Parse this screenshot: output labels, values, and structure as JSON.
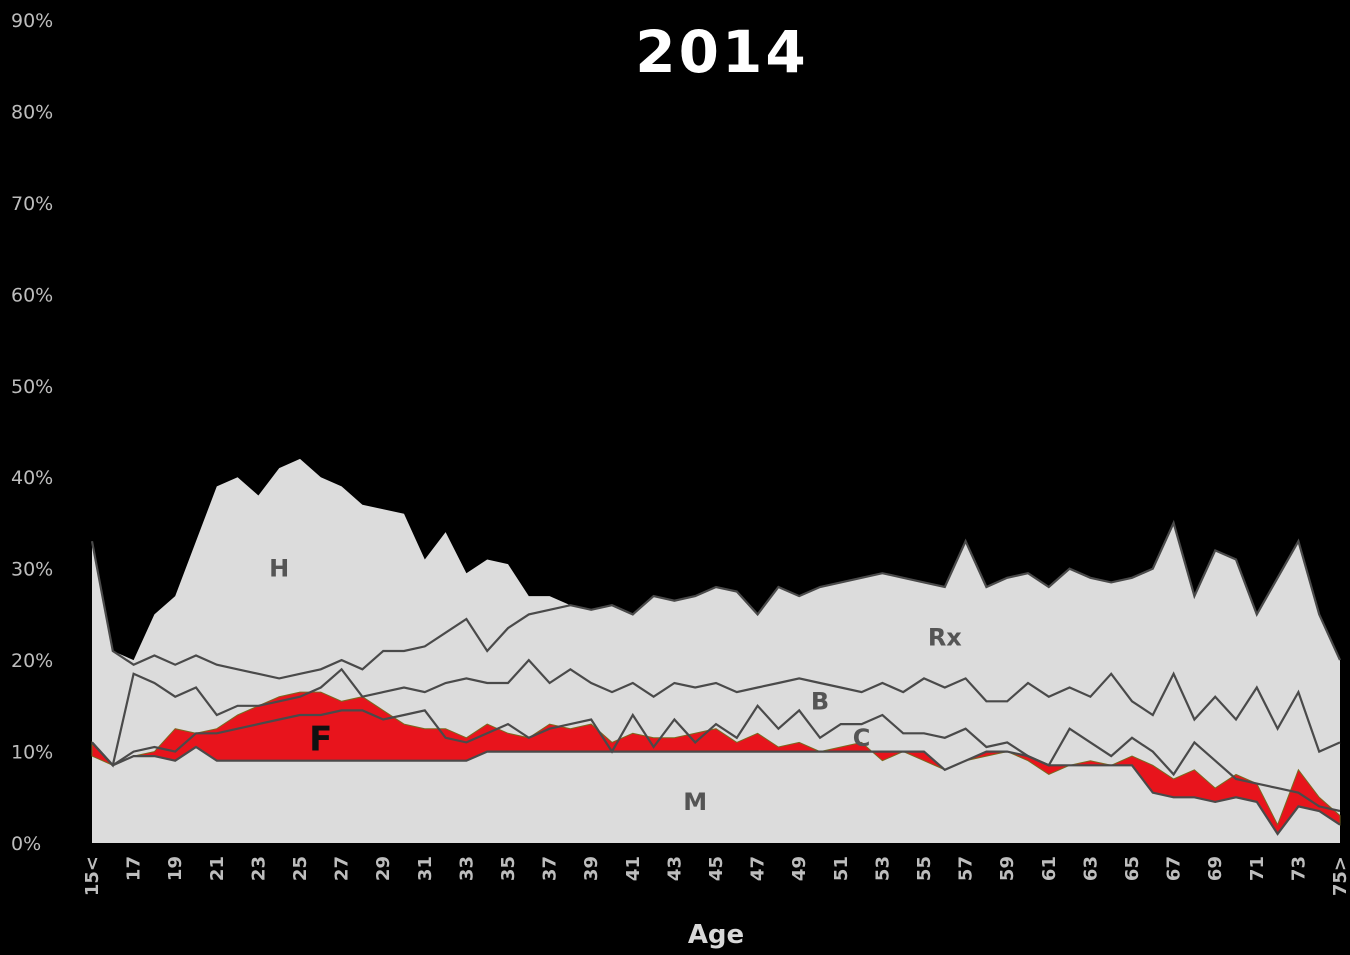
{
  "chart_data": {
    "type": "area",
    "title": "2014",
    "xlabel": "Age",
    "ylabel": "",
    "ylim": [
      0,
      90
    ],
    "yticks": [
      "0%",
      "10%",
      "20%",
      "30%",
      "40%",
      "50%",
      "60%",
      "70%",
      "80%",
      "90%"
    ],
    "xlim": [
      15,
      75
    ],
    "xticks": [
      "15<",
      "17",
      "19",
      "21",
      "23",
      "25",
      "27",
      "29",
      "31",
      "33",
      "35",
      "37",
      "39",
      "41",
      "43",
      "45",
      "47",
      "49",
      "51",
      "53",
      "55",
      "57",
      "59",
      "61",
      "63",
      "65",
      "67",
      "69",
      "71",
      "73",
      "75>"
    ],
    "region_labels": [
      "H",
      "Rx",
      "B",
      "C",
      "F",
      "M"
    ],
    "colors": {
      "background": "#000000",
      "area": "#dcdcdc",
      "line": "#4a4a4a",
      "F_highlight": "#e8141c"
    },
    "x": [
      15,
      16,
      17,
      18,
      19,
      20,
      21,
      22,
      23,
      24,
      25,
      26,
      27,
      28,
      29,
      30,
      31,
      32,
      33,
      34,
      35,
      36,
      37,
      38,
      39,
      40,
      41,
      42,
      43,
      44,
      45,
      46,
      47,
      48,
      49,
      50,
      51,
      52,
      53,
      54,
      55,
      56,
      57,
      58,
      59,
      60,
      61,
      62,
      63,
      64,
      65,
      66,
      67,
      68,
      69,
      70,
      71,
      72,
      73,
      74,
      75
    ],
    "series": [
      {
        "name": "H",
        "values": [
          33,
          21,
          20,
          25,
          27,
          33,
          39,
          40,
          38,
          41,
          42,
          40,
          39,
          37,
          36.5,
          36,
          31,
          34,
          29.5,
          31,
          30.5,
          27,
          27,
          26,
          25.5,
          26,
          25,
          27,
          26.5,
          27,
          28,
          27.5,
          25,
          28,
          27,
          28,
          28.5,
          29,
          29.5,
          29,
          28.5,
          28,
          33,
          28,
          29,
          29.5,
          28,
          30,
          29,
          28.5,
          29,
          30,
          35,
          27,
          32,
          31,
          25,
          29,
          33,
          25,
          20
        ]
      },
      {
        "name": "Rx",
        "values": [
          33,
          21,
          19.5,
          20.5,
          19.5,
          20.5,
          19.5,
          19,
          18.5,
          18,
          18.5,
          19,
          20,
          19,
          21,
          21,
          21.5,
          23,
          24.5,
          21,
          23.5,
          25,
          25.5,
          26,
          25.5,
          26,
          25,
          27,
          26.5,
          27,
          28,
          27.5,
          25,
          28,
          27,
          28,
          28.5,
          29,
          29.5,
          29,
          28.5,
          28,
          33,
          28,
          29,
          29.5,
          28,
          30,
          29,
          28.5,
          29,
          30,
          35,
          27,
          32,
          31,
          25,
          29,
          33,
          25,
          20
        ]
      },
      {
        "name": "B",
        "values": [
          11,
          8.5,
          18.5,
          17.5,
          16,
          17,
          14,
          15,
          15,
          15.5,
          16,
          17,
          19,
          16,
          16.5,
          17,
          16.5,
          17.5,
          18,
          17.5,
          17.5,
          20,
          17.5,
          19,
          17.5,
          16.5,
          17.5,
          16,
          17.5,
          17,
          17.5,
          16.5,
          17,
          17.5,
          18,
          17.5,
          17,
          16.5,
          17.5,
          16.5,
          18,
          17,
          18,
          15.5,
          15.5,
          17.5,
          16,
          17,
          16,
          18.5,
          15.5,
          14,
          18.5,
          13.5,
          16,
          13.5,
          17,
          12.5,
          16.5,
          10,
          11
        ]
      },
      {
        "name": "C",
        "values": [
          11,
          8.5,
          10,
          10.5,
          10,
          12,
          12,
          12.5,
          13,
          13.5,
          14,
          14,
          14.5,
          14.5,
          13.5,
          14,
          14.5,
          11.5,
          11,
          12,
          13,
          11.5,
          12.5,
          13,
          13.5,
          10,
          14,
          10.5,
          13.5,
          11,
          13,
          11.5,
          15,
          12.5,
          14.5,
          11.5,
          13,
          13,
          14,
          12,
          12,
          11.5,
          12.5,
          10.5,
          11,
          9.5,
          8.5,
          12.5,
          11,
          9.5,
          11.5,
          10,
          7.5,
          11,
          9,
          7,
          6.5,
          6,
          5.5,
          4,
          3.5
        ]
      },
      {
        "name": "F",
        "values": [
          9.5,
          8.5,
          9.5,
          10,
          12.5,
          12,
          12.5,
          14,
          15,
          16,
          16.5,
          16.5,
          15.5,
          16,
          14.5,
          13,
          12.5,
          12.5,
          11.5,
          13,
          12,
          11.5,
          13,
          12.5,
          13,
          11,
          12,
          11.5,
          11.5,
          12,
          12.5,
          11,
          12,
          10.5,
          11,
          10,
          10.5,
          11,
          9,
          10,
          9,
          8,
          9,
          9.5,
          10,
          9,
          7.5,
          8.5,
          9,
          8.5,
          9.5,
          8.5,
          7,
          8,
          6,
          7.5,
          6.5,
          2,
          8,
          5,
          3
        ]
      },
      {
        "name": "M",
        "values": [
          11,
          8.5,
          9.5,
          9.5,
          9,
          10.5,
          9,
          9,
          9,
          9,
          9,
          9,
          9,
          9,
          9,
          9,
          9,
          9,
          9,
          10,
          10,
          10,
          10,
          10,
          10,
          10,
          10,
          10,
          10,
          10,
          10,
          10,
          10,
          10,
          10,
          10,
          10,
          10,
          10,
          10,
          10,
          8,
          9,
          10,
          10,
          9.5,
          8.5,
          8.5,
          8.5,
          8.5,
          8.5,
          5.5,
          5,
          5,
          4.5,
          5,
          4.5,
          1,
          4,
          3.5,
          2
        ]
      }
    ]
  }
}
